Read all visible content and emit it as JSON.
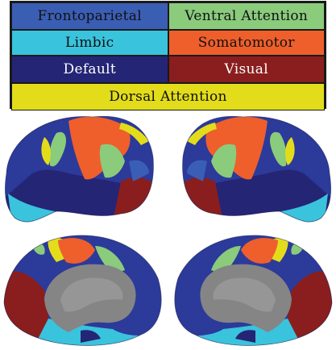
{
  "legend": {
    "items": [
      {
        "label": "Frontoparietal",
        "color": "#3b5eb5",
        "text_color": "#111111"
      },
      {
        "label": "Ventral Attention",
        "color": "#8acb7c",
        "text_color": "#111111"
      },
      {
        "label": "Limbic",
        "color": "#3ac3dc",
        "text_color": "#111111"
      },
      {
        "label": "Somatomotor",
        "color": "#ee5f2c",
        "text_color": "#111111"
      },
      {
        "label": "Default",
        "color": "#242575",
        "text_color": "#ffffff"
      },
      {
        "label": "Visual",
        "color": "#8a1e1e",
        "text_color": "#ffffff"
      },
      {
        "label": "Dorsal Attention",
        "color": "#e3dc1b",
        "text_color": "#111111"
      }
    ]
  },
  "views": [
    "left-lateral",
    "right-lateral",
    "left-medial",
    "right-medial"
  ]
}
